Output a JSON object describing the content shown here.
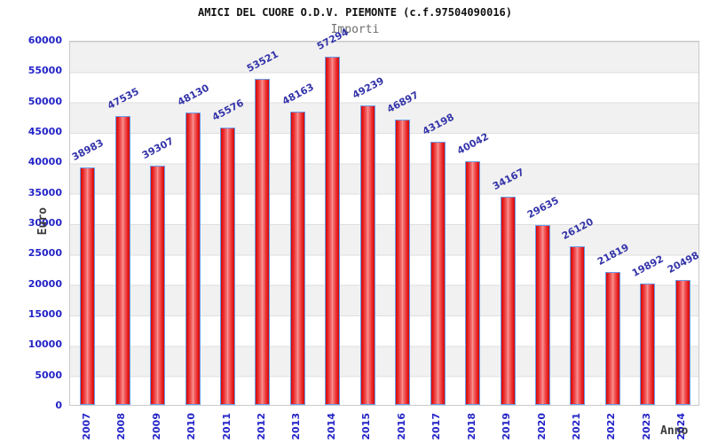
{
  "colors": {
    "bar_fill_dark": "#c90f0f",
    "bar_fill_light": "#f99b9b",
    "bar_border": "#6a9ce8",
    "axis_tick_label": "#2424c8",
    "value_label": "#3434aa",
    "band_gray": "#f1f1f1",
    "band_white": "#ffffff",
    "grid_line": "#dedede",
    "plot_border": "#c9c9c9",
    "title_color": "#111111",
    "subtitle_color": "#6e6e6e",
    "axis_title_color": "#3a3a3a"
  },
  "chart_data": {
    "type": "bar",
    "title": "AMICI DEL CUORE O.D.V. PIEMONTE (c.f.97504090016)",
    "subtitle": "Importi",
    "xlabel": "Anno",
    "ylabel": "Euro",
    "categories": [
      "2007",
      "2008",
      "2009",
      "2010",
      "2011",
      "2012",
      "2013",
      "2014",
      "2015",
      "2016",
      "2017",
      "2018",
      "2019",
      "2020",
      "2021",
      "2022",
      "2023",
      "2024"
    ],
    "values": [
      38983,
      47535,
      39307,
      48130,
      45576,
      53521,
      48163,
      57294,
      49239,
      46897,
      43198,
      40042,
      34167,
      29635,
      26120,
      21819,
      19892,
      20498
    ],
    "ylim": [
      0,
      60000
    ],
    "ytick_step": 5000,
    "grid": true,
    "band_stripes": true,
    "legend": false,
    "bar_label_rotation_deg": -28,
    "xtick_rotation_deg": -90
  }
}
